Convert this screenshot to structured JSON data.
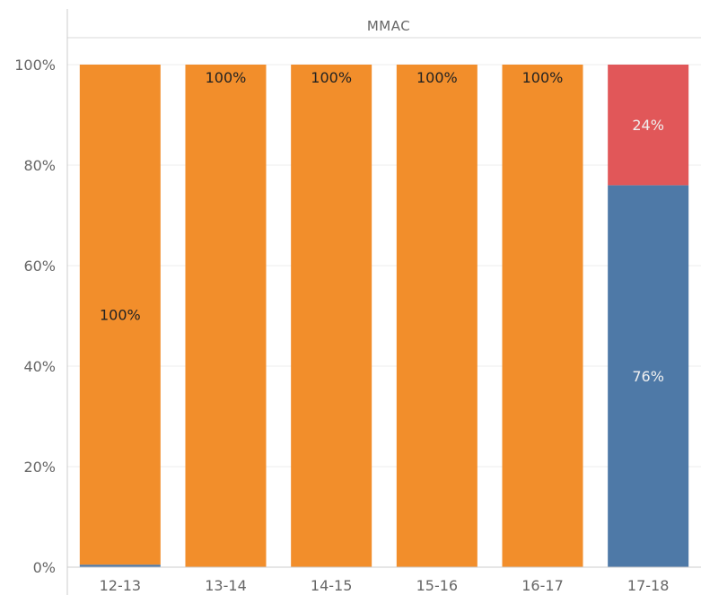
{
  "chart_data": {
    "type": "bar",
    "stacked": true,
    "title": "MMAC",
    "categories": [
      "12-13",
      "13-14",
      "14-15",
      "15-16",
      "16-17",
      "17-18"
    ],
    "y_ticks": [
      "0%",
      "20%",
      "40%",
      "60%",
      "80%",
      "100%"
    ],
    "ylim": [
      0,
      100
    ],
    "grid": true,
    "series": [
      {
        "color": "#4e79a7",
        "values": [
          0.5,
          0,
          0,
          0,
          0,
          76
        ],
        "labels": [
          "",
          "",
          "",
          "",
          "",
          "76%"
        ],
        "label_color": "#f0f0f0"
      },
      {
        "color": "#f28e2b",
        "values": [
          99.5,
          100,
          100,
          100,
          100,
          0
        ],
        "labels": [
          "100%",
          "100%",
          "100%",
          "100%",
          "100%",
          ""
        ],
        "label_color": "#222222"
      },
      {
        "color": "#e15759",
        "values": [
          0,
          0,
          0,
          0,
          0,
          24
        ],
        "labels": [
          "",
          "",
          "",
          "",
          "",
          "24%"
        ],
        "label_color": "#f0f0f0"
      }
    ]
  }
}
